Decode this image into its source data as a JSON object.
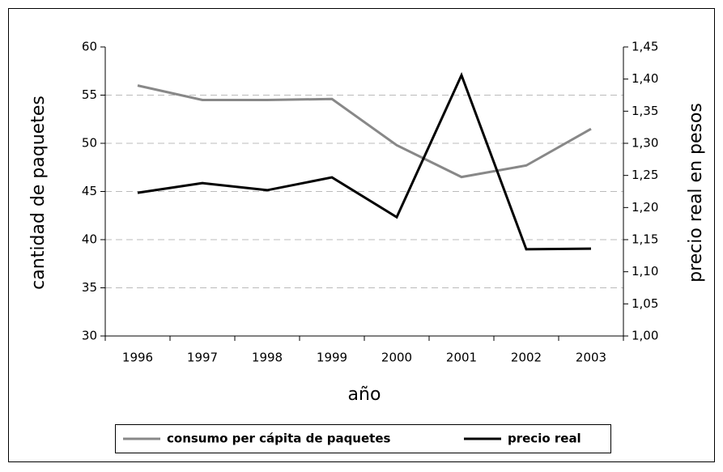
{
  "chart_data": {
    "type": "line",
    "categories": [
      "1996",
      "1997",
      "1998",
      "1999",
      "2000",
      "2001",
      "2002",
      "2003"
    ],
    "xlabel": "año",
    "ylabel": "cantidad de paquetes",
    "y2label": "precio real en pesos",
    "ylim": [
      30,
      60
    ],
    "yticks": [
      30,
      35,
      40,
      45,
      50,
      55,
      60
    ],
    "y2lim": [
      1.0,
      1.45
    ],
    "y2ticks": [
      {
        "value": 1.0,
        "label": "1,00"
      },
      {
        "value": 1.05,
        "label": "1,05"
      },
      {
        "value": 1.1,
        "label": "1,10"
      },
      {
        "value": 1.15,
        "label": "1,15"
      },
      {
        "value": 1.2,
        "label": "1,20"
      },
      {
        "value": 1.25,
        "label": "1,25"
      },
      {
        "value": 1.3,
        "label": "1,30"
      },
      {
        "value": 1.35,
        "label": "1,35"
      },
      {
        "value": 1.4,
        "label": "1,40"
      },
      {
        "value": 1.45,
        "label": "1,45"
      }
    ],
    "grid": true,
    "series": [
      {
        "name": "consumo per cápita de paquetes",
        "color": "#888888",
        "values": [
          56,
          54.5,
          54.5,
          54.6,
          49.8,
          46.5,
          47.7,
          51.5
        ]
      },
      {
        "name": "precio real",
        "color": "#000000",
        "axis": "y2",
        "values": [
          1.223,
          1.238,
          1.227,
          1.247,
          1.185,
          1.406,
          1.135,
          1.136
        ]
      }
    ]
  }
}
